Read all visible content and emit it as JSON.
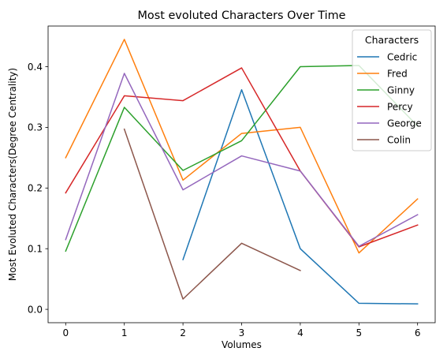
{
  "chart_data": {
    "type": "line",
    "title": "Most evoluted Characters Over Time",
    "xlabel": "Volumes",
    "ylabel": "Most Evoluted Characters(Degree Centrality)",
    "x": [
      0,
      1,
      2,
      3,
      4,
      5,
      6
    ],
    "xlim": [
      -0.3,
      6.3
    ],
    "ylim": [
      -0.022,
      0.467
    ],
    "xticks": [
      "0",
      "1",
      "2",
      "3",
      "4",
      "5",
      "6"
    ],
    "yticks": [
      "0.0",
      "0.1",
      "0.2",
      "0.3",
      "0.4"
    ],
    "ytick_values": [
      0.0,
      0.1,
      0.2,
      0.3,
      0.4
    ],
    "grid": false,
    "legend": {
      "title": "Characters",
      "placement": "top-right"
    },
    "series": [
      {
        "name": "Cedric",
        "color": "#1f77b4",
        "values": [
          null,
          null,
          0.082,
          0.362,
          0.1,
          0.01,
          0.009
        ]
      },
      {
        "name": "Fred",
        "color": "#ff7f0e",
        "values": [
          0.25,
          0.445,
          0.213,
          0.29,
          0.3,
          0.093,
          0.182
        ]
      },
      {
        "name": "Ginny",
        "color": "#2ca02c",
        "values": [
          0.096,
          0.333,
          0.229,
          0.278,
          0.4,
          0.402,
          0.302
        ]
      },
      {
        "name": "Percy",
        "color": "#d62728",
        "values": [
          0.192,
          0.352,
          0.344,
          0.398,
          0.228,
          0.103,
          0.139
        ]
      },
      {
        "name": "George",
        "color": "#9467bd",
        "values": [
          0.115,
          0.389,
          0.197,
          0.253,
          0.228,
          0.104,
          0.156
        ]
      },
      {
        "name": "Colin",
        "color": "#8c564b",
        "values": [
          null,
          0.297,
          0.017,
          0.109,
          0.064,
          null,
          null
        ]
      }
    ]
  }
}
